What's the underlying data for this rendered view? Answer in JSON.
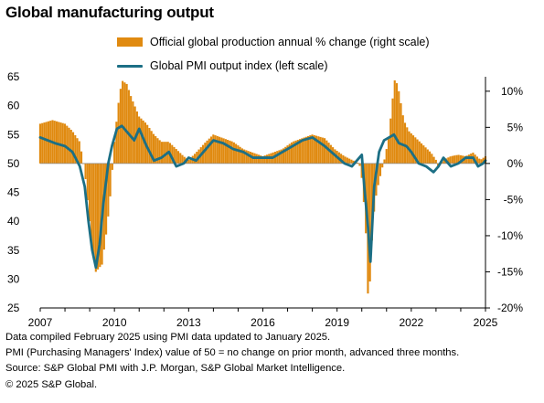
{
  "title": "Global manufacturing output",
  "legend": {
    "bars_label": "Official global production annual % change (right scale)",
    "line_label": "Global PMI output index (left scale)"
  },
  "colors": {
    "bars": "#e08a10",
    "line": "#1c6f85",
    "axis": "#000000"
  },
  "footer": [
    "Data compiled February 2025 using PMI data updated to January 2025.",
    "PMI (Purchasing Managers' Index) value of 50 = no change on prior month, advanced three months.",
    "Source: S&P Global PMI with J.P. Morgan, S&P Global Market Intelligence.",
    "© 2025 S&P Global."
  ],
  "chart_data": {
    "type": "bar+line",
    "x_range": [
      2007,
      2025
    ],
    "x_ticks": [
      "2007",
      "2010",
      "2013",
      "2016",
      "2019",
      "2022",
      "2025"
    ],
    "left_axis": {
      "range": [
        25,
        65
      ],
      "ticks": [
        "65",
        "60",
        "55",
        "50",
        "45",
        "40",
        "35",
        "30",
        "25"
      ]
    },
    "right_axis": {
      "range": [
        -20,
        12
      ],
      "ticks": [
        "10%",
        "5%",
        "0%",
        "-5%",
        "-10%",
        "-15%",
        "-20%"
      ]
    },
    "bars_series": {
      "name": "Official global production annual % change (right scale)",
      "axis": "right",
      "points": [
        [
          2007.0,
          5.5
        ],
        [
          2007.5,
          6.0
        ],
        [
          2008.0,
          5.5
        ],
        [
          2008.3,
          4.5
        ],
        [
          2008.6,
          3.0
        ],
        [
          2008.8,
          -1.0
        ],
        [
          2009.0,
          -8.0
        ],
        [
          2009.1,
          -12.0
        ],
        [
          2009.25,
          -15.0
        ],
        [
          2009.5,
          -14.0
        ],
        [
          2009.7,
          -9.0
        ],
        [
          2009.85,
          -4.0
        ],
        [
          2010.0,
          3.0
        ],
        [
          2010.15,
          8.0
        ],
        [
          2010.3,
          11.5
        ],
        [
          2010.5,
          11.0
        ],
        [
          2010.7,
          9.0
        ],
        [
          2011.0,
          6.5
        ],
        [
          2011.3,
          5.5
        ],
        [
          2011.6,
          4.0
        ],
        [
          2011.9,
          3.0
        ],
        [
          2012.2,
          3.0
        ],
        [
          2012.5,
          2.0
        ],
        [
          2012.8,
          1.0
        ],
        [
          2013.0,
          0.5
        ],
        [
          2013.3,
          1.5
        ],
        [
          2013.7,
          3.0
        ],
        [
          2014.0,
          4.0
        ],
        [
          2014.4,
          3.5
        ],
        [
          2014.8,
          3.0
        ],
        [
          2015.2,
          2.0
        ],
        [
          2015.6,
          1.5
        ],
        [
          2016.0,
          1.0
        ],
        [
          2016.4,
          1.5
        ],
        [
          2016.8,
          2.0
        ],
        [
          2017.2,
          3.0
        ],
        [
          2017.6,
          3.5
        ],
        [
          2018.0,
          4.0
        ],
        [
          2018.5,
          3.5
        ],
        [
          2018.9,
          2.0
        ],
        [
          2019.3,
          1.0
        ],
        [
          2019.6,
          0.5
        ],
        [
          2019.9,
          0.0
        ],
        [
          2020.0,
          -2.0
        ],
        [
          2020.15,
          -8.0
        ],
        [
          2020.25,
          -18.0
        ],
        [
          2020.35,
          -16.0
        ],
        [
          2020.45,
          -8.0
        ],
        [
          2020.6,
          -4.0
        ],
        [
          2020.8,
          -1.0
        ],
        [
          2020.95,
          1.0
        ],
        [
          2021.1,
          4.0
        ],
        [
          2021.25,
          9.0
        ],
        [
          2021.35,
          12.0
        ],
        [
          2021.5,
          10.0
        ],
        [
          2021.7,
          6.0
        ],
        [
          2021.9,
          4.5
        ],
        [
          2022.2,
          3.5
        ],
        [
          2022.5,
          2.5
        ],
        [
          2022.8,
          1.5
        ],
        [
          2023.0,
          0.5
        ],
        [
          2023.1,
          -0.5
        ],
        [
          2023.3,
          0.5
        ],
        [
          2023.6,
          1.0
        ],
        [
          2023.9,
          1.2
        ],
        [
          2024.2,
          1.0
        ],
        [
          2024.5,
          1.5
        ],
        [
          2024.8,
          0.5
        ],
        [
          2025.0,
          1.0
        ]
      ]
    },
    "line_series": {
      "name": "Global PMI output index (left scale)",
      "axis": "left",
      "points": [
        [
          2007.0,
          54.5
        ],
        [
          2007.3,
          54.0
        ],
        [
          2007.6,
          53.5
        ],
        [
          2008.0,
          53.0
        ],
        [
          2008.3,
          52.0
        ],
        [
          2008.6,
          49.5
        ],
        [
          2008.8,
          46.0
        ],
        [
          2008.95,
          40.0
        ],
        [
          2009.1,
          35.0
        ],
        [
          2009.25,
          32.0
        ],
        [
          2009.4,
          36.0
        ],
        [
          2009.55,
          43.0
        ],
        [
          2009.75,
          50.0
        ],
        [
          2009.9,
          53.0
        ],
        [
          2010.1,
          56.0
        ],
        [
          2010.3,
          56.5
        ],
        [
          2010.5,
          55.5
        ],
        [
          2010.8,
          54.0
        ],
        [
          2011.0,
          56.0
        ],
        [
          2011.3,
          53.0
        ],
        [
          2011.6,
          50.5
        ],
        [
          2011.9,
          51.0
        ],
        [
          2012.2,
          52.0
        ],
        [
          2012.5,
          49.5
        ],
        [
          2012.8,
          50.0
        ],
        [
          2013.0,
          51.0
        ],
        [
          2013.3,
          50.5
        ],
        [
          2013.7,
          52.5
        ],
        [
          2014.0,
          54.0
        ],
        [
          2014.4,
          53.5
        ],
        [
          2014.8,
          52.5
        ],
        [
          2015.2,
          52.0
        ],
        [
          2015.6,
          51.0
        ],
        [
          2016.0,
          51.0
        ],
        [
          2016.4,
          51.0
        ],
        [
          2016.8,
          52.0
        ],
        [
          2017.2,
          53.0
        ],
        [
          2017.6,
          54.0
        ],
        [
          2018.0,
          54.5
        ],
        [
          2018.5,
          53.0
        ],
        [
          2018.9,
          51.5
        ],
        [
          2019.3,
          50.0
        ],
        [
          2019.6,
          49.5
        ],
        [
          2019.9,
          51.0
        ],
        [
          2020.0,
          51.5
        ],
        [
          2020.1,
          46.0
        ],
        [
          2020.25,
          39.0
        ],
        [
          2020.35,
          33.0
        ],
        [
          2020.5,
          46.0
        ],
        [
          2020.7,
          52.0
        ],
        [
          2020.9,
          54.0
        ],
        [
          2021.1,
          54.5
        ],
        [
          2021.3,
          55.0
        ],
        [
          2021.5,
          53.5
        ],
        [
          2021.8,
          53.0
        ],
        [
          2022.0,
          52.0
        ],
        [
          2022.3,
          50.0
        ],
        [
          2022.6,
          49.5
        ],
        [
          2022.9,
          48.5
        ],
        [
          2023.1,
          49.5
        ],
        [
          2023.3,
          51.0
        ],
        [
          2023.6,
          49.5
        ],
        [
          2023.9,
          50.0
        ],
        [
          2024.2,
          51.0
        ],
        [
          2024.5,
          51.0
        ],
        [
          2024.7,
          49.5
        ],
        [
          2024.9,
          50.0
        ],
        [
          2025.0,
          50.5
        ]
      ]
    }
  }
}
